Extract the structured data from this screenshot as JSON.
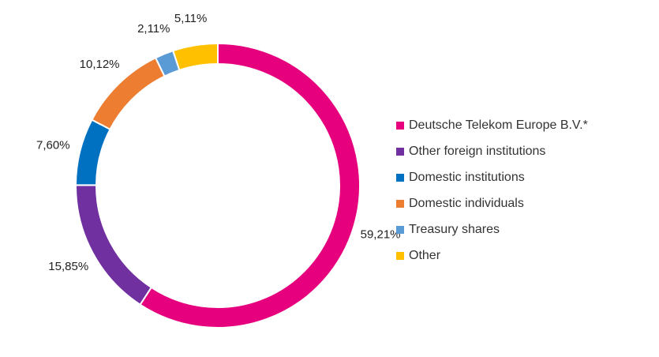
{
  "chart_data": {
    "type": "pie",
    "donut": true,
    "categories": [
      "Deutsche Telekom Europe B.V.*",
      "Other foreign institutions",
      "Domestic institutions",
      "Domestic individuals",
      "Treasury shares",
      "Other"
    ],
    "values": [
      59.21,
      15.85,
      7.6,
      10.12,
      2.11,
      5.11
    ],
    "data_labels": [
      "59,21%",
      "15,85%",
      "7,60%",
      "10,12%",
      "2,11%",
      "5,11%"
    ],
    "colors": [
      "#E6007E",
      "#7030A0",
      "#0070C0",
      "#ED7D31",
      "#5B9BD5",
      "#FFC000"
    ],
    "legend_position": "right"
  }
}
